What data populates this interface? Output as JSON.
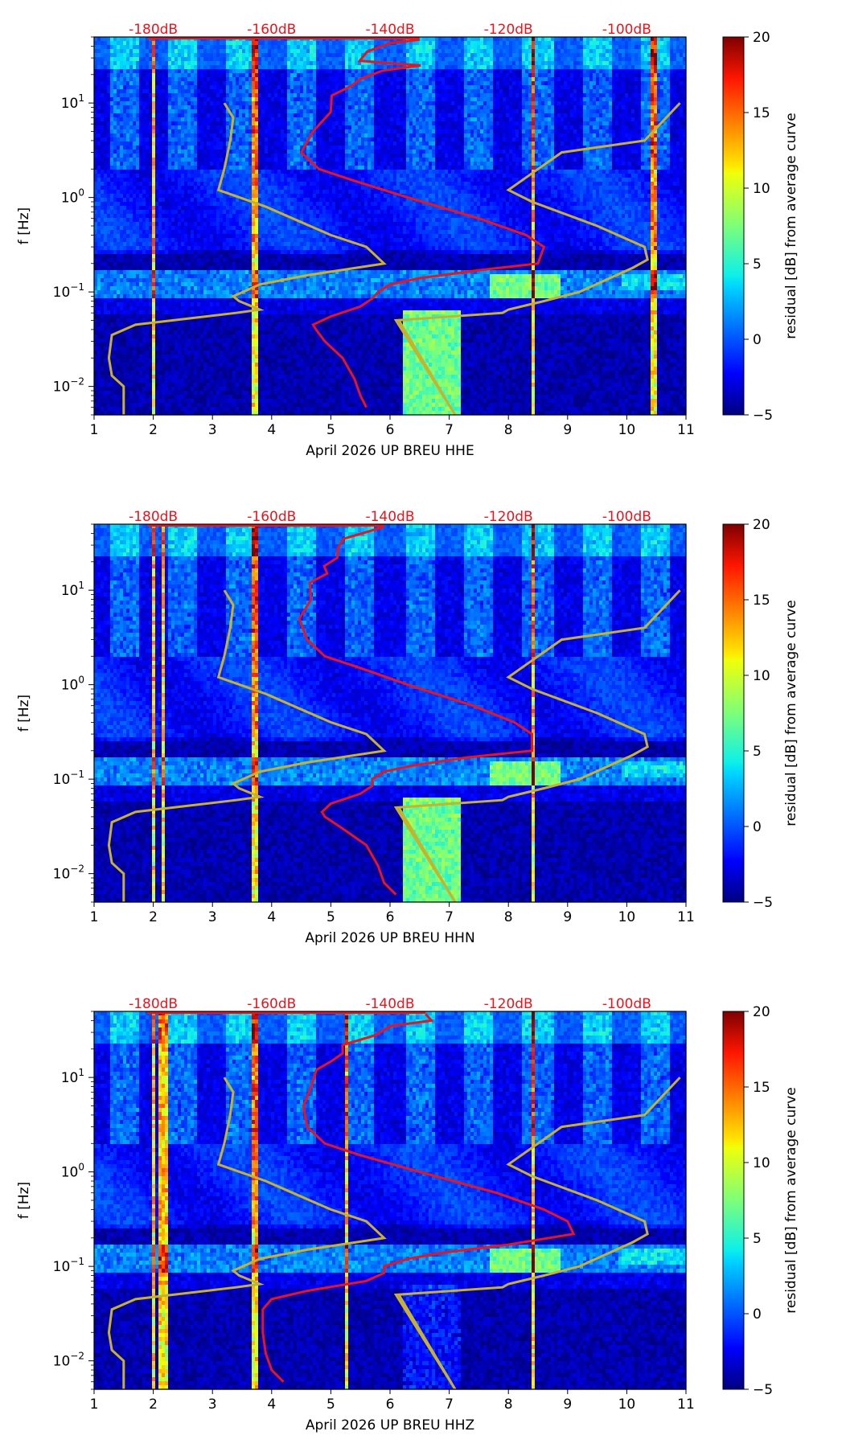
{
  "chart_data": [
    {
      "type": "heatmap",
      "channel": "HHE",
      "xlabel": "April 2026 UP BREU  HHE",
      "ylabel": "f [Hz]",
      "xlim": [
        1,
        11
      ],
      "ylim": [
        0.005,
        50
      ],
      "yscale": "log",
      "xticks": [
        "1",
        "2",
        "3",
        "4",
        "5",
        "6",
        "7",
        "8",
        "9",
        "10",
        "11"
      ],
      "yticks": [
        {
          "value": 10,
          "label": "10^1"
        },
        {
          "value": 1,
          "label": "10^0"
        },
        {
          "value": 0.1,
          "label": "10^-1"
        },
        {
          "value": 0.01,
          "label": "10^-2"
        }
      ],
      "top_scale": [
        "-180dB",
        "-160dB",
        "-140dB",
        "-120dB",
        "-100dB"
      ],
      "colorbar": {
        "label": "residual [dB] from average curve",
        "min": -5,
        "max": 20,
        "ticks": [
          "20",
          "15",
          "10",
          "5",
          "0",
          "−5"
        ]
      },
      "hot_columns": [
        2.0,
        3.72,
        8.4,
        10.45
      ],
      "mean_psd": [
        [
          47,
          6.5
        ],
        [
          43,
          6.0
        ],
        [
          35,
          5.6
        ],
        [
          28,
          5.4
        ],
        [
          25,
          6.4
        ],
        [
          22,
          5.9
        ],
        [
          18,
          5.6
        ],
        [
          15,
          5.3
        ],
        [
          12,
          5.1
        ],
        [
          8,
          5.0
        ],
        [
          5,
          4.6
        ],
        [
          3,
          4.5
        ],
        [
          2,
          4.8
        ],
        [
          1.5,
          5.4
        ],
        [
          1,
          6.3
        ],
        [
          0.6,
          7.5
        ],
        [
          0.4,
          8.3
        ],
        [
          0.3,
          8.6
        ],
        [
          0.2,
          8.5
        ],
        [
          0.17,
          7.5
        ],
        [
          0.14,
          6.5
        ],
        [
          0.12,
          6.0
        ],
        [
          0.1,
          5.8
        ],
        [
          0.085,
          5.7
        ],
        [
          0.07,
          5.5
        ],
        [
          0.055,
          5.0
        ],
        [
          0.045,
          4.7
        ],
        [
          0.04,
          4.75
        ],
        [
          0.03,
          4.9
        ],
        [
          0.02,
          5.2
        ],
        [
          0.012,
          5.4
        ],
        [
          0.008,
          5.5
        ],
        [
          0.006,
          5.6
        ]
      ]
    },
    {
      "type": "heatmap",
      "channel": "HHN",
      "xlabel": "April 2026 UP BREU  HHN",
      "ylabel": "f [Hz]",
      "xlim": [
        1,
        11
      ],
      "ylim": [
        0.005,
        50
      ],
      "yscale": "log",
      "xticks": [
        "1",
        "2",
        "3",
        "4",
        "5",
        "6",
        "7",
        "8",
        "9",
        "10",
        "11"
      ],
      "yticks": [
        {
          "value": 10,
          "label": "10^1"
        },
        {
          "value": 1,
          "label": "10^0"
        },
        {
          "value": 0.1,
          "label": "10^-1"
        },
        {
          "value": 0.01,
          "label": "10^-2"
        }
      ],
      "top_scale": [
        "-180dB",
        "-160dB",
        "-140dB",
        "-120dB",
        "-100dB"
      ],
      "colorbar": {
        "label": "residual [dB] from average curve",
        "min": -5,
        "max": 20,
        "ticks": [
          "20",
          "15",
          "10",
          "5",
          "0",
          "−5"
        ]
      },
      "hot_columns": [
        2.0,
        2.15,
        3.72,
        8.4
      ],
      "mean_psd": [
        [
          47,
          5.9
        ],
        [
          43,
          5.7
        ],
        [
          35,
          5.2
        ],
        [
          28,
          5.0
        ],
        [
          22,
          5.1
        ],
        [
          18,
          4.9
        ],
        [
          15,
          4.8
        ],
        [
          12,
          4.7
        ],
        [
          8,
          4.6
        ],
        [
          5,
          4.5
        ],
        [
          3,
          4.6
        ],
        [
          2,
          4.9
        ],
        [
          1.5,
          5.5
        ],
        [
          1,
          6.3
        ],
        [
          0.6,
          7.4
        ],
        [
          0.4,
          8.1
        ],
        [
          0.3,
          8.4
        ],
        [
          0.2,
          8.4
        ],
        [
          0.17,
          7.3
        ],
        [
          0.14,
          6.4
        ],
        [
          0.12,
          5.9
        ],
        [
          0.1,
          5.7
        ],
        [
          0.085,
          5.7
        ],
        [
          0.07,
          5.5
        ],
        [
          0.055,
          5.0
        ],
        [
          0.045,
          4.85
        ],
        [
          0.04,
          4.9
        ],
        [
          0.03,
          5.2
        ],
        [
          0.02,
          5.6
        ],
        [
          0.012,
          5.8
        ],
        [
          0.008,
          5.9
        ],
        [
          0.006,
          6.1
        ]
      ]
    },
    {
      "type": "heatmap",
      "channel": "HHZ",
      "xlabel": "April 2026 UP BREU  HHZ",
      "ylabel": "f [Hz]",
      "xlim": [
        1,
        11
      ],
      "ylim": [
        0.005,
        50
      ],
      "yscale": "log",
      "xticks": [
        "1",
        "2",
        "3",
        "4",
        "5",
        "6",
        "7",
        "8",
        "9",
        "10",
        "11"
      ],
      "yticks": [
        {
          "value": 10,
          "label": "10^1"
        },
        {
          "value": 1,
          "label": "10^0"
        },
        {
          "value": 0.1,
          "label": "10^-1"
        },
        {
          "value": 0.01,
          "label": "10^-2"
        }
      ],
      "top_scale": [
        "-180dB",
        "-160dB",
        "-140dB",
        "-120dB",
        "-100dB"
      ],
      "colorbar": {
        "label": "residual [dB] from average curve",
        "min": -5,
        "max": 20,
        "ticks": [
          "20",
          "15",
          "10",
          "5",
          "0",
          "−5"
        ]
      },
      "hot_columns": [
        2.0,
        2.1,
        2.2,
        3.72,
        8.4,
        5.25
      ],
      "mean_psd": [
        [
          47,
          6.6
        ],
        [
          40,
          6.7
        ],
        [
          35,
          6.0
        ],
        [
          28,
          5.6
        ],
        [
          22,
          5.3
        ],
        [
          18,
          5.2
        ],
        [
          15,
          5.0
        ],
        [
          12,
          4.9
        ],
        [
          8,
          4.8
        ],
        [
          5,
          4.6
        ],
        [
          3,
          4.6
        ],
        [
          2,
          4.9
        ],
        [
          1.5,
          5.5
        ],
        [
          1,
          6.5
        ],
        [
          0.6,
          7.8
        ],
        [
          0.4,
          8.6
        ],
        [
          0.3,
          9.0
        ],
        [
          0.22,
          9.1
        ],
        [
          0.17,
          8.0
        ],
        [
          0.14,
          6.9
        ],
        [
          0.12,
          6.3
        ],
        [
          0.1,
          5.9
        ],
        [
          0.085,
          5.9
        ],
        [
          0.07,
          5.6
        ],
        [
          0.055,
          4.6
        ],
        [
          0.045,
          4.0
        ],
        [
          0.035,
          3.85
        ],
        [
          0.02,
          3.85
        ],
        [
          0.012,
          3.9
        ],
        [
          0.008,
          4.0
        ],
        [
          0.006,
          4.2
        ]
      ]
    }
  ],
  "reference_curves": {
    "nlnm_x": [
      [
        10,
        3.2
      ],
      [
        7,
        3.35
      ],
      [
        4,
        3.3
      ],
      [
        2,
        3.2
      ],
      [
        1.2,
        3.1
      ],
      [
        0.8,
        3.9
      ],
      [
        0.4,
        5.0
      ],
      [
        0.3,
        5.6
      ],
      [
        0.2,
        5.9
      ],
      [
        0.15,
        4.6
      ],
      [
        0.12,
        3.8
      ],
      [
        0.09,
        3.35
      ],
      [
        0.08,
        3.45
      ],
      [
        0.065,
        3.8
      ],
      [
        0.06,
        3.4
      ],
      [
        0.045,
        1.7
      ],
      [
        0.035,
        1.3
      ],
      [
        0.02,
        1.25
      ],
      [
        0.013,
        1.3
      ],
      [
        0.01,
        1.5
      ],
      [
        0.005,
        1.5
      ]
    ],
    "nhnm_x": [
      [
        10,
        10.9
      ],
      [
        4,
        10.3
      ],
      [
        3,
        8.9
      ],
      [
        2,
        8.5
      ],
      [
        1.2,
        8.0
      ],
      [
        0.9,
        8.4
      ],
      [
        0.5,
        9.5
      ],
      [
        0.3,
        10.3
      ],
      [
        0.22,
        10.35
      ],
      [
        0.18,
        10.1
      ],
      [
        0.1,
        9.2
      ],
      [
        0.08,
        8.6
      ],
      [
        0.065,
        8.0
      ],
      [
        0.06,
        7.9
      ],
      [
        0.05,
        6.1
      ],
      [
        0.005,
        7.1
      ]
    ]
  }
}
